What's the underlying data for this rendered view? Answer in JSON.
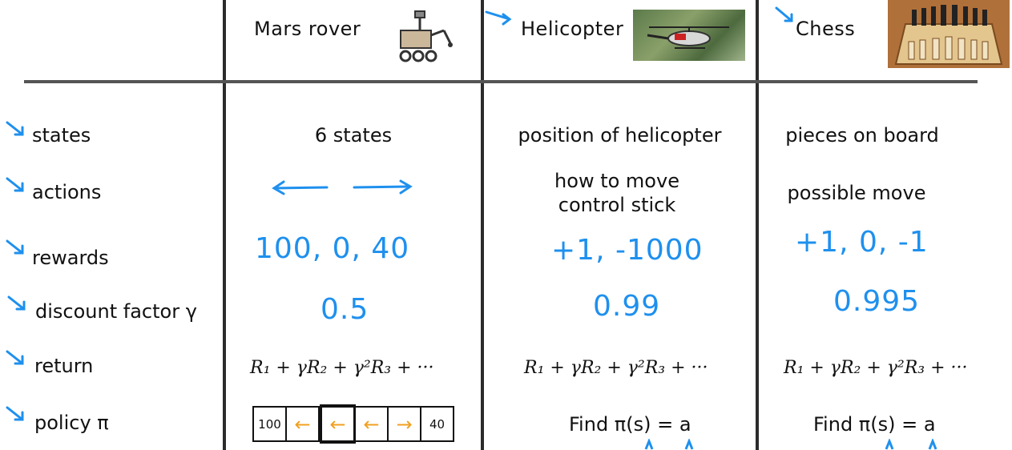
{
  "columns": [
    {
      "header": "Mars rover"
    },
    {
      "header": "Helicopter"
    },
    {
      "header": "Chess"
    }
  ],
  "rows": {
    "states": {
      "label": "states",
      "values": [
        "6 states",
        "position of helicopter",
        "pieces on board"
      ]
    },
    "actions": {
      "label": "actions",
      "values": [
        "",
        "how to move\ncontrol stick",
        "possible move"
      ]
    },
    "rewards": {
      "label": "rewards",
      "values": [
        "100, 0, 40",
        "+1, -1000",
        "+1, 0, -1"
      ]
    },
    "discount": {
      "label": "discount factor γ",
      "values": [
        "0.5",
        "0.99",
        "0.995"
      ]
    },
    "return": {
      "label": "return",
      "formula": "R₁ + γR₂ + γ²R₃ + ···"
    },
    "policy": {
      "label": "policy π",
      "find": "Find π(s) = a"
    }
  },
  "policy_grid": {
    "cells": [
      "100",
      "←",
      "←",
      "←",
      "→",
      "40"
    ],
    "arrow_color": "#f0a020"
  },
  "colors": {
    "handwriting": "#1e90ee",
    "lines": "#2b2b2b"
  }
}
